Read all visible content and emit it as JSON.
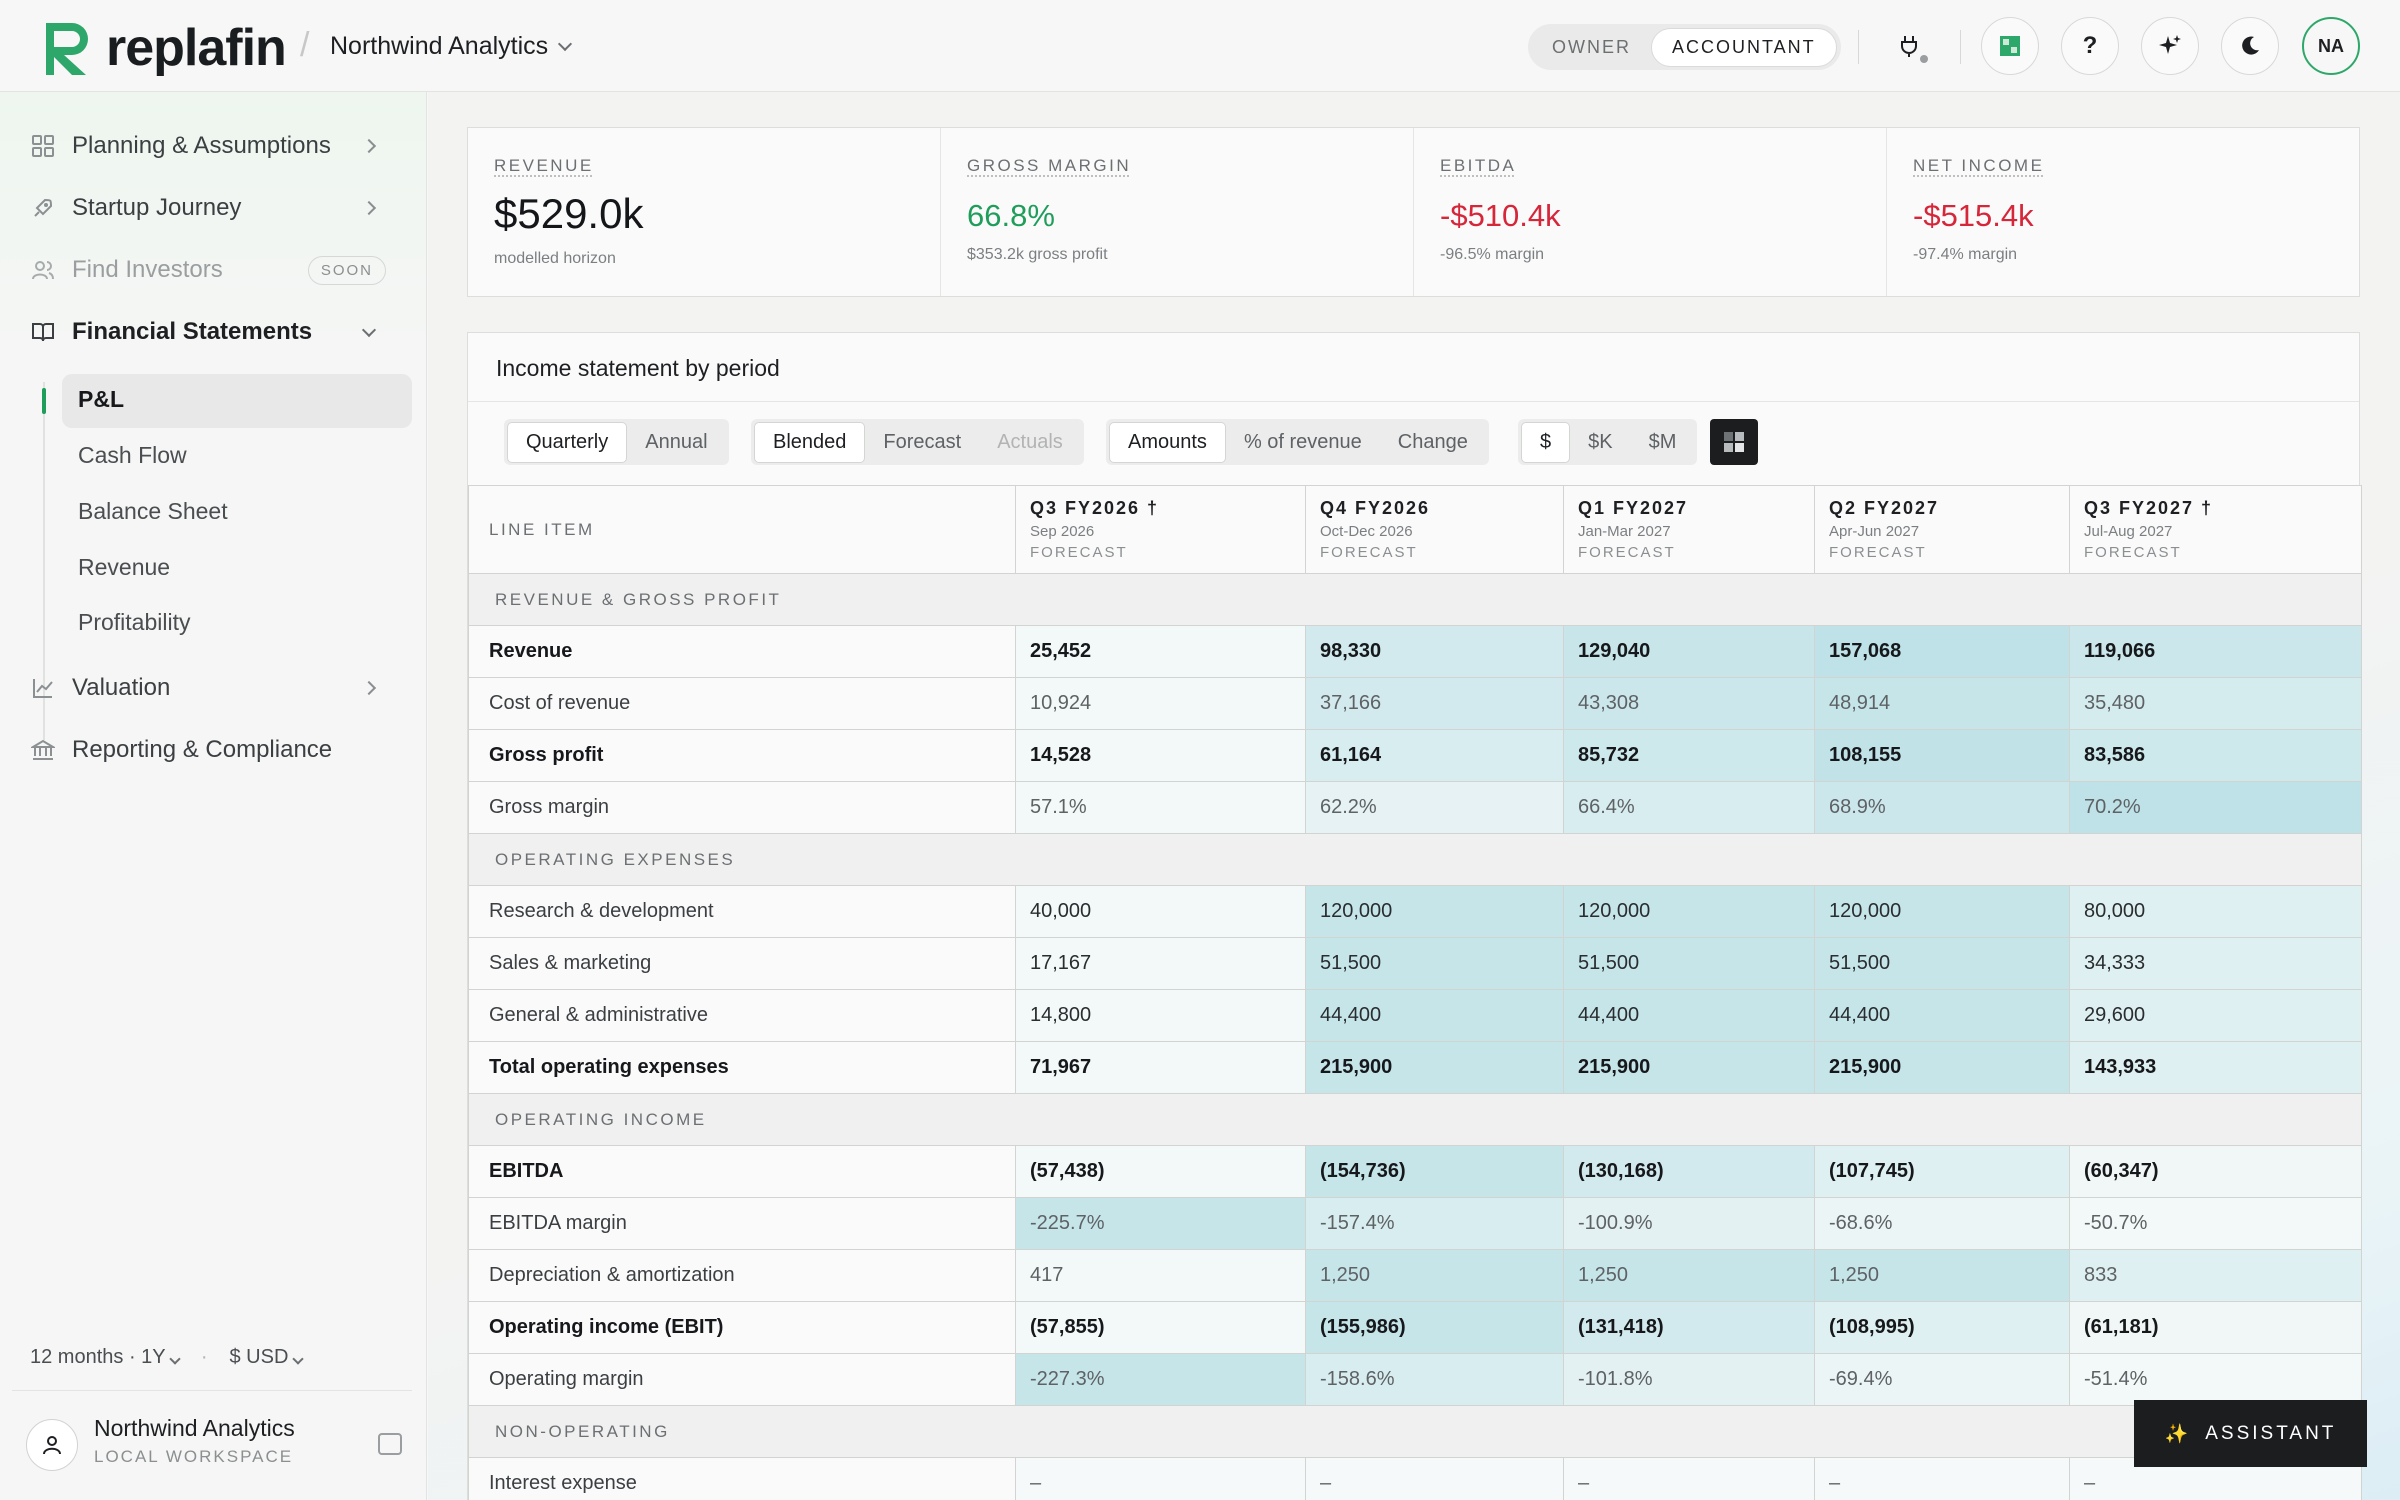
{
  "brand": {
    "name": "replafin",
    "accent": "#2ea86a"
  },
  "header": {
    "workspace": "Northwind Analytics",
    "roles": [
      "OWNER",
      "ACCOUNTANT"
    ],
    "active_role": "ACCOUNTANT",
    "help_label": "?",
    "avatar_initials": "NA"
  },
  "sidebar": {
    "items": [
      {
        "label": "Planning & Assumptions",
        "icon": "grid-icon"
      },
      {
        "label": "Startup Journey",
        "icon": "rocket-icon"
      },
      {
        "label": "Find Investors",
        "icon": "users-icon",
        "badge": "SOON"
      },
      {
        "label": "Financial Statements",
        "icon": "book-icon"
      },
      {
        "label": "Valuation",
        "icon": "chart-icon"
      },
      {
        "label": "Reporting & Compliance",
        "icon": "bank-icon"
      }
    ],
    "subitems": [
      "P&L",
      "Cash Flow",
      "Balance Sheet",
      "Revenue",
      "Profitability"
    ],
    "active_subitem": "P&L",
    "horizon": "12 months · 1Y",
    "currency": "$ USD",
    "user": {
      "name": "Northwind Analytics",
      "workspace_type": "LOCAL WORKSPACE"
    }
  },
  "kpis": [
    {
      "label": "REVENUE",
      "value": "$529.0k",
      "sub": "modelled horizon"
    },
    {
      "label": "GROSS MARGIN",
      "value": "66.8%",
      "sub": "$353.2k gross profit"
    },
    {
      "label": "EBITDA",
      "value": "-$510.4k",
      "sub": "-96.5% margin"
    },
    {
      "label": "NET INCOME",
      "value": "-$515.4k",
      "sub": "-97.4% margin"
    }
  ],
  "panel": {
    "title": "Income statement by period",
    "period_toggle": [
      "Quarterly",
      "Annual"
    ],
    "mode_toggle": [
      "Blended",
      "Forecast",
      "Actuals"
    ],
    "view_toggle": [
      "Amounts",
      "% of revenue",
      "Change"
    ],
    "unit_toggle": [
      "$",
      "$K",
      "$M"
    ]
  },
  "table": {
    "line_item_header": "LINE ITEM",
    "periods": [
      {
        "name": "Q3 FY2026 †",
        "range": "Sep 2026",
        "type": "FORECAST"
      },
      {
        "name": "Q4 FY2026",
        "range": "Oct-Dec 2026",
        "type": "FORECAST"
      },
      {
        "name": "Q1 FY2027",
        "range": "Jan-Mar 2027",
        "type": "FORECAST"
      },
      {
        "name": "Q2 FY2027",
        "range": "Apr-Jun 2027",
        "type": "FORECAST"
      },
      {
        "name": "Q3 FY2027 †",
        "range": "Jul-Aug 2027",
        "type": "FORECAST"
      }
    ],
    "rows": [
      {
        "kind": "section",
        "label": "REVENUE & GROSS PROFIT"
      },
      {
        "kind": "bold",
        "label": "Revenue",
        "values": [
          "25,452",
          "98,330",
          "129,040",
          "157,068",
          "119,066"
        ],
        "heat": [
          0.05,
          0.55,
          0.7,
          0.85,
          0.65
        ]
      },
      {
        "kind": "muted",
        "label": "Cost of revenue",
        "values": [
          "10,924",
          "37,166",
          "43,308",
          "48,914",
          "35,480"
        ],
        "heat": [
          0.05,
          0.55,
          0.65,
          0.75,
          0.5
        ]
      },
      {
        "kind": "bold",
        "label": "Gross profit",
        "values": [
          "14,528",
          "61,164",
          "85,732",
          "108,155",
          "83,586"
        ],
        "heat": [
          0.05,
          0.45,
          0.6,
          0.8,
          0.6
        ]
      },
      {
        "kind": "muted",
        "label": "Gross margin",
        "values": [
          "57.1%",
          "62.2%",
          "66.4%",
          "68.9%",
          "70.2%"
        ],
        "heat": [
          0.05,
          0.25,
          0.45,
          0.65,
          0.85
        ]
      },
      {
        "kind": "section",
        "label": "OPERATING EXPENSES"
      },
      {
        "kind": "normal",
        "label": "Research & development",
        "values": [
          "40,000",
          "120,000",
          "120,000",
          "120,000",
          "80,000"
        ],
        "heat": [
          0.05,
          0.75,
          0.75,
          0.75,
          0.35
        ]
      },
      {
        "kind": "normal",
        "label": "Sales & marketing",
        "values": [
          "17,167",
          "51,500",
          "51,500",
          "51,500",
          "34,333"
        ],
        "heat": [
          0.05,
          0.75,
          0.75,
          0.75,
          0.35
        ]
      },
      {
        "kind": "normal",
        "label": "General & administrative",
        "values": [
          "14,800",
          "44,400",
          "44,400",
          "44,400",
          "29,600"
        ],
        "heat": [
          0.05,
          0.75,
          0.75,
          0.75,
          0.35
        ]
      },
      {
        "kind": "bold",
        "label": "Total operating expenses",
        "values": [
          "71,967",
          "215,900",
          "215,900",
          "215,900",
          "143,933"
        ],
        "heat": [
          0.05,
          0.75,
          0.75,
          0.75,
          0.35
        ]
      },
      {
        "kind": "section",
        "label": "OPERATING INCOME"
      },
      {
        "kind": "bold",
        "label": "EBITDA",
        "values": [
          "(57,438)",
          "(154,736)",
          "(130,168)",
          "(107,745)",
          "(60,347)"
        ],
        "heat": [
          0.05,
          0.75,
          0.55,
          0.35,
          0.08
        ]
      },
      {
        "kind": "muted",
        "label": "EBITDA margin",
        "values": [
          "-225.7%",
          "-157.4%",
          "-100.9%",
          "-68.6%",
          "-50.7%"
        ],
        "heat": [
          0.75,
          0.45,
          0.28,
          0.15,
          0.05
        ]
      },
      {
        "kind": "muted",
        "label": "Depreciation & amortization",
        "values": [
          "417",
          "1,250",
          "1,250",
          "1,250",
          "833"
        ],
        "heat": [
          0.05,
          0.75,
          0.75,
          0.75,
          0.35
        ]
      },
      {
        "kind": "bold",
        "label": "Operating income (EBIT)",
        "values": [
          "(57,855)",
          "(155,986)",
          "(131,418)",
          "(108,995)",
          "(61,181)"
        ],
        "heat": [
          0.05,
          0.75,
          0.55,
          0.35,
          0.08
        ]
      },
      {
        "kind": "muted",
        "label": "Operating margin",
        "values": [
          "-227.3%",
          "-158.6%",
          "-101.8%",
          "-69.4%",
          "-51.4%"
        ],
        "heat": [
          0.75,
          0.45,
          0.28,
          0.15,
          0.05
        ]
      },
      {
        "kind": "section",
        "label": "NON-OPERATING"
      },
      {
        "kind": "muted",
        "label": "Interest expense",
        "values": [
          "–",
          "–",
          "–",
          "–",
          "–"
        ],
        "heat": [
          0,
          0,
          0,
          0,
          0
        ]
      }
    ]
  },
  "assistant": {
    "label": "ASSISTANT",
    "icon": "sparkle-icon"
  }
}
